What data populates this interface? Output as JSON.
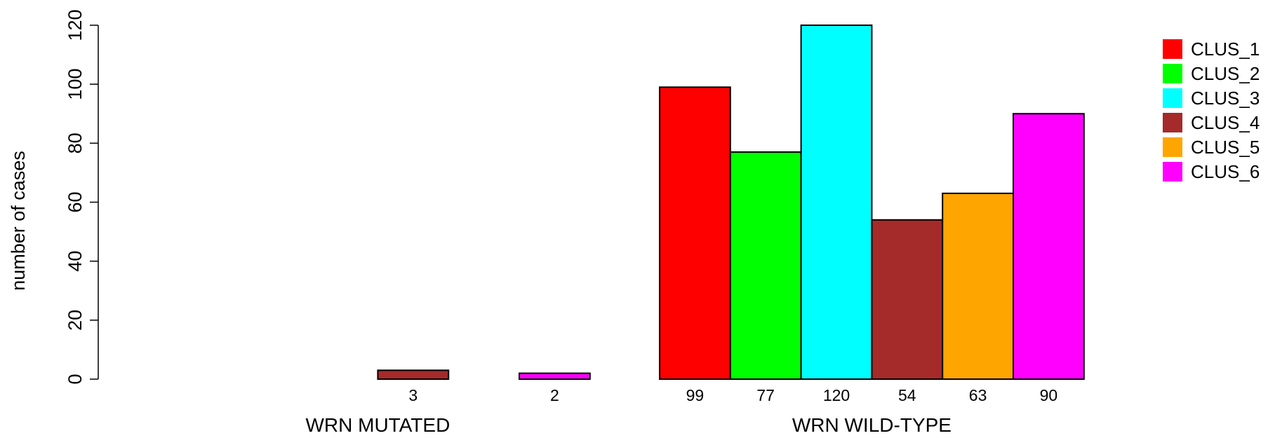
{
  "chart_data": {
    "type": "bar",
    "ylabel": "number of cases",
    "ylim": [
      0,
      120
    ],
    "yticks": [
      "0",
      "20",
      "40",
      "60",
      "80",
      "100",
      "120"
    ],
    "series": [
      {
        "name": "CLUS_1",
        "color": "#ff0000"
      },
      {
        "name": "CLUS_2",
        "color": "#00ff00"
      },
      {
        "name": "CLUS_3",
        "color": "#00ffff"
      },
      {
        "name": "CLUS_4",
        "color": "#a52a2a"
      },
      {
        "name": "CLUS_5",
        "color": "#ffa500"
      },
      {
        "name": "CLUS_6",
        "color": "#ff00ff"
      }
    ],
    "groups": [
      {
        "label": "WRN MUTATED",
        "values": [
          0,
          0,
          0,
          3,
          0,
          2
        ],
        "value_labels": [
          "",
          "",
          "",
          "3",
          "",
          "2"
        ]
      },
      {
        "label": "WRN WILD-TYPE",
        "values": [
          99,
          77,
          120,
          54,
          63,
          90
        ],
        "value_labels": [
          "99",
          "77",
          "120",
          "54",
          "63",
          "90"
        ]
      }
    ],
    "legend_position": "top-right"
  }
}
